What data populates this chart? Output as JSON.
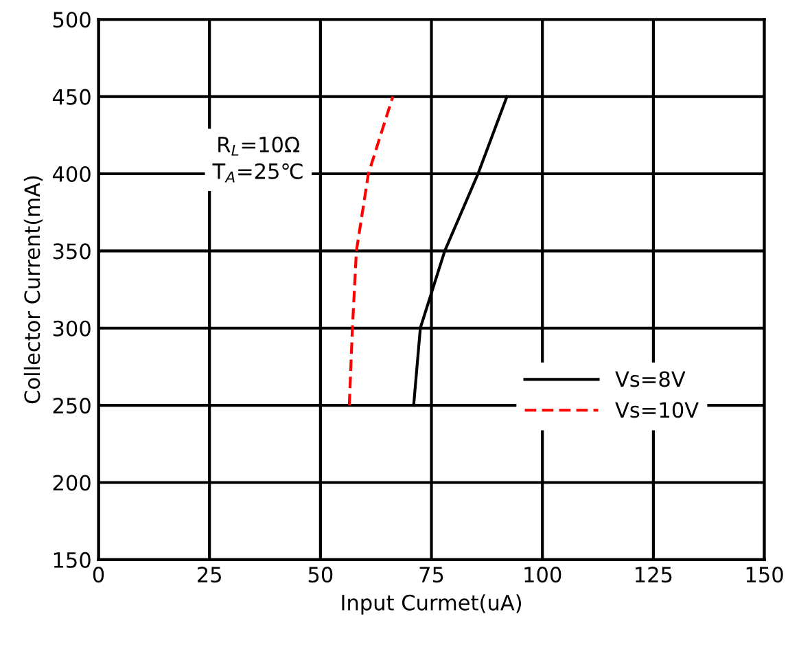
{
  "chart_data": {
    "type": "line",
    "xlabel": "Input Curmet(uA)",
    "ylabel": "Collector Current(mA)",
    "series": [
      {
        "name": "Vs=8V",
        "color": "#000000",
        "line_style": "solid",
        "x": [
          71,
          72.5,
          78,
          85.5,
          92
        ],
        "values": [
          250,
          300,
          350,
          400,
          450
        ]
      },
      {
        "name": "Vs=10V",
        "color": "#ff0000",
        "line_style": "dashed",
        "x": [
          56.5,
          57.2,
          58.1,
          60.8,
          66.3
        ],
        "values": [
          250,
          300,
          350,
          400,
          450
        ]
      }
    ],
    "annotations": [
      "R$_{L}$=10Ω\nT$_{A}$=25℃"
    ],
    "xlim": [
      0,
      150
    ],
    "xticks": [
      0,
      25,
      50,
      75,
      100,
      125,
      150
    ],
    "ylim": [
      150,
      500
    ],
    "yticks": [
      150,
      200,
      250,
      300,
      350,
      400,
      450,
      500
    ],
    "grid": true,
    "legend": "bottom right",
    "marker": "none"
  }
}
